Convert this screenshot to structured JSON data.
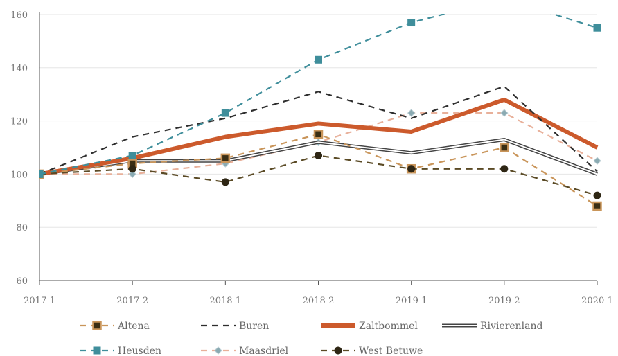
{
  "chart_data": {
    "type": "line",
    "title": "",
    "xlabel": "",
    "ylabel": "",
    "categories": [
      "2017-1",
      "2017-2",
      "2018-1",
      "2018-2",
      "2019-1",
      "2019-2",
      "2020-1"
    ],
    "ylim": [
      60,
      160
    ],
    "yticks": [
      60,
      80,
      100,
      120,
      140,
      160
    ],
    "grid": true,
    "legend_position": "bottom",
    "series": [
      {
        "name": "Altena",
        "values": [
          100,
          104,
          106,
          115,
          102,
          110,
          88
        ],
        "color": "#c9955a",
        "dash": "dashed",
        "marker": "square-dark"
      },
      {
        "name": "Buren",
        "values": [
          100,
          114,
          121,
          131,
          121,
          133,
          101
        ],
        "color": "#2e2e2e",
        "dash": "dashed",
        "marker": "none"
      },
      {
        "name": "Zaltbommel",
        "values": [
          100,
          106,
          114,
          119,
          116,
          128,
          110
        ],
        "color": "#cc5a2c",
        "dash": "solid-thick",
        "marker": "none"
      },
      {
        "name": "Rivierenland",
        "values": [
          100,
          105,
          105,
          112,
          108,
          113,
          100
        ],
        "color": "#444444",
        "dash": "double",
        "marker": "none"
      },
      {
        "name": "Heusden",
        "values": [
          100,
          107,
          123,
          143,
          157,
          166,
          155
        ],
        "color": "#3f8e9b",
        "dash": "dashed",
        "marker": "square"
      },
      {
        "name": "Maasdriel",
        "values": [
          100,
          100,
          104,
          112,
          123,
          123,
          105
        ],
        "color": "#e8b09a",
        "dash": "dashed",
        "marker": "diamond"
      },
      {
        "name": "West Betuwe",
        "values": [
          100,
          102,
          97,
          107,
          102,
          102,
          92
        ],
        "color": "#5a4a25",
        "dash": "dashed",
        "marker": "circle"
      }
    ]
  }
}
